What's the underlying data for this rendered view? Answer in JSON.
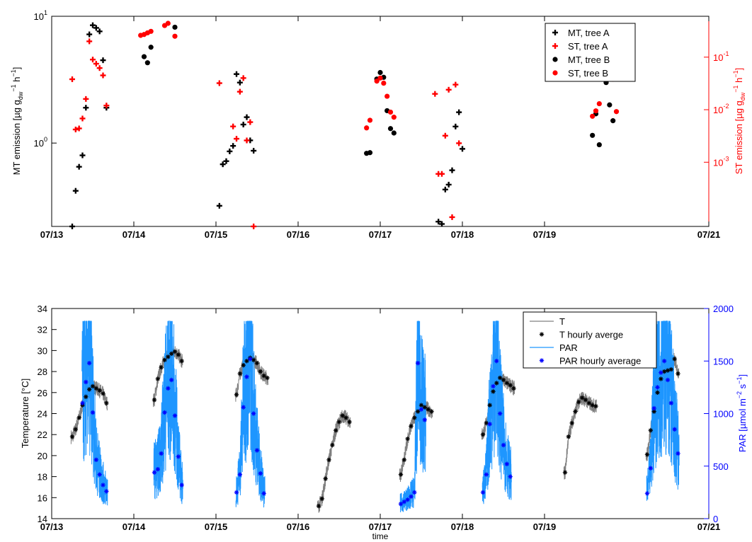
{
  "figure": {
    "xlabel": "time",
    "date_ticks": [
      "07/13",
      "07/14",
      "07/15",
      "07/16",
      "07/17",
      "07/18",
      "07/19",
      "07/21"
    ]
  },
  "colors": {
    "black": "#000000",
    "red": "#ff0000",
    "gray": "#808080",
    "par": "#1e96ff",
    "par_hourly": "#0000ff"
  },
  "chart_data": [
    {
      "type": "scatter",
      "ylabel_left": "MT emission [µg g_dw^-1 h^-1]",
      "ylabel_right": "ST emission [µg g_dw^-1 h^-1]",
      "y_left_scale": "log",
      "y_left_range": [
        0.22,
        10
      ],
      "y_left_ticks": [
        {
          "v": 10,
          "label": "10",
          "exp": "1"
        },
        {
          "v": 1,
          "label": "10",
          "exp": "0"
        }
      ],
      "y_right_scale": "log",
      "y_right_range": [
        6e-05,
        0.6
      ],
      "y_right_ticks": [
        {
          "v": 0.1,
          "label": "10",
          "exp": "-1"
        },
        {
          "v": 0.01,
          "label": "10",
          "exp": "-2"
        },
        {
          "v": 0.001,
          "label": "10",
          "exp": "-3"
        }
      ],
      "x_range": [
        "2012-07-13",
        "2012-07-21"
      ],
      "legend_position": "top-right",
      "series": [
        {
          "name": "MT, tree A",
          "marker": "plus",
          "color": "#000000",
          "axis": "left",
          "x": [
            "07/13 06:00",
            "07/13 07:00",
            "07/13 08:00",
            "07/13 09:00",
            "07/13 10:00",
            "07/13 11:00",
            "07/13 12:00",
            "07/13 13:00",
            "07/13 14:00",
            "07/13 15:00",
            "07/13 16:00",
            "07/13 17:00",
            "07/15 01:00",
            "07/15 02:00",
            "07/15 03:00",
            "07/15 04:00",
            "07/15 05:00",
            "07/15 06:00",
            "07/15 07:00",
            "07/15 08:00",
            "07/15 09:00",
            "07/15 10:00",
            "07/15 11:00",
            "07/15 12:00",
            "07/17 17:00",
            "07/17 18:00",
            "07/17 19:00",
            "07/17 20:00",
            "07/17 21:00",
            "07/17 22:00",
            "07/17 23:00",
            "07/18 00:00"
          ],
          "y": [
            0.22,
            0.42,
            0.65,
            0.8,
            1.9,
            7.2,
            8.5,
            8.1,
            7.6,
            4.5,
            1.9,
            null,
            0.32,
            0.68,
            0.72,
            0.86,
            0.95,
            3.5,
            3.0,
            1.4,
            1.6,
            1.05,
            0.87,
            null,
            0.24,
            0.23,
            0.43,
            0.47,
            0.61,
            1.35,
            1.75,
            0.9
          ]
        },
        {
          "name": "ST, tree A",
          "marker": "plus",
          "color": "#ff0000",
          "axis": "right",
          "x": [
            "07/13 06:00",
            "07/13 07:00",
            "07/13 08:00",
            "07/13 09:00",
            "07/13 10:00",
            "07/13 11:00",
            "07/13 12:00",
            "07/13 13:00",
            "07/13 14:00",
            "07/13 15:00",
            "07/13 16:00",
            "07/15 01:00",
            "07/15 05:00",
            "07/15 06:00",
            "07/15 07:00",
            "07/15 08:00",
            "07/15 09:00",
            "07/15 10:00",
            "07/15 11:00",
            "07/17 16:00",
            "07/17 17:00",
            "07/17 18:00",
            "07/17 19:00",
            "07/17 20:00",
            "07/17 21:00",
            "07/17 22:00",
            "07/17 23:00"
          ],
          "y": [
            0.038,
            0.0042,
            0.0044,
            0.0068,
            0.016,
            0.2,
            0.09,
            0.075,
            0.062,
            0.045,
            0.012,
            0.032,
            0.0048,
            0.0028,
            0.022,
            0.04,
            0.0026,
            0.0058,
            6e-05,
            0.02,
            0.0006,
            0.0006,
            0.0032,
            0.024,
            9e-05,
            0.03,
            0.0023
          ]
        },
        {
          "name": "MT, tree B",
          "marker": "dot",
          "color": "#000000",
          "axis": "left",
          "x": [
            "07/14 03:00",
            "07/14 04:00",
            "07/14 05:00",
            "07/14 12:00",
            "07/16 20:00",
            "07/16 21:00",
            "07/16 23:00",
            "07/17 00:00",
            "07/17 01:00",
            "07/17 02:00",
            "07/17 03:00",
            "07/17 04:00",
            "07/19 14:00",
            "07/19 15:00",
            "07/19 16:00",
            "07/19 17:00",
            "07/19 18:00",
            "07/19 19:00",
            "07/19 20:00"
          ],
          "y": [
            4.8,
            4.3,
            5.7,
            8.2,
            0.83,
            0.84,
            3.2,
            3.6,
            3.3,
            1.8,
            1.3,
            1.2,
            1.15,
            1.7,
            0.97,
            3.5,
            3.0,
            2.0,
            1.5
          ]
        },
        {
          "name": "ST, tree B",
          "marker": "dot",
          "color": "#ff0000",
          "axis": "right",
          "x": [
            "07/14 02:00",
            "07/14 03:00",
            "07/14 04:00",
            "07/14 05:00",
            "07/14 09:00",
            "07/14 10:00",
            "07/14 12:00",
            "07/16 20:00",
            "07/16 21:00",
            "07/16 23:00",
            "07/17 00:00",
            "07/17 01:00",
            "07/17 02:00",
            "07/17 03:00",
            "07/17 04:00",
            "07/19 14:00",
            "07/19 15:00",
            "07/19 16:00",
            "07/19 17:00",
            "07/19 18:00",
            "07/19 19:00",
            "07/19 20:00",
            "07/19 21:00"
          ],
          "y": [
            0.26,
            0.27,
            0.29,
            0.31,
            0.4,
            0.44,
            0.25,
            0.0045,
            0.0063,
            0.035,
            0.04,
            0.032,
            0.018,
            0.009,
            0.0072,
            0.0075,
            0.0095,
            0.013,
            0.16,
            0.042,
            0.055,
            0.038,
            0.0092
          ]
        }
      ]
    },
    {
      "type": "line",
      "ylabel_left": "Temperature [°C]",
      "ylabel_right": "PAR [µmol m^-2 s^-1]",
      "y_left_range": [
        14,
        34
      ],
      "y_left_ticks": [
        14,
        16,
        18,
        20,
        22,
        24,
        26,
        28,
        30,
        32,
        34
      ],
      "y_right_range": [
        0,
        2000
      ],
      "y_right_ticks": [
        0,
        500,
        1000,
        1500,
        2000
      ],
      "x_range": [
        "2012-07-13",
        "2012-07-21"
      ],
      "legend_position": "top-right",
      "series": [
        {
          "name": "T",
          "style": "line",
          "color": "#808080",
          "axis": "left"
        },
        {
          "name": "T hourly averge",
          "style": "marker",
          "marker": "asterisk",
          "color": "#000000",
          "axis": "left",
          "x": [
            "07/13 06:00",
            "07/13 07:00",
            "07/13 08:00",
            "07/13 09:00",
            "07/13 10:00",
            "07/13 11:00",
            "07/13 12:00",
            "07/13 13:00",
            "07/13 14:00",
            "07/13 15:00",
            "07/13 16:00",
            "07/14 06:00",
            "07/14 07:00",
            "07/14 08:00",
            "07/14 09:00",
            "07/14 10:00",
            "07/14 11:00",
            "07/14 12:00",
            "07/14 13:00",
            "07/14 14:00",
            "07/15 06:00",
            "07/15 07:00",
            "07/15 08:00",
            "07/15 09:00",
            "07/15 10:00",
            "07/15 11:00",
            "07/15 12:00",
            "07/15 13:00",
            "07/15 14:00",
            "07/15 15:00",
            "07/16 06:00",
            "07/16 07:00",
            "07/16 08:00",
            "07/16 09:00",
            "07/16 10:00",
            "07/16 11:00",
            "07/16 12:00",
            "07/16 13:00",
            "07/16 14:00",
            "07/16 15:00",
            "07/17 06:00",
            "07/17 07:00",
            "07/17 08:00",
            "07/17 09:00",
            "07/17 10:00",
            "07/17 11:00",
            "07/17 12:00",
            "07/17 13:00",
            "07/17 14:00",
            "07/17 15:00",
            "07/18 06:00",
            "07/18 07:00",
            "07/18 08:00",
            "07/18 09:00",
            "07/18 10:00",
            "07/18 11:00",
            "07/18 12:00",
            "07/18 13:00",
            "07/18 14:00",
            "07/18 15:00",
            "07/19 06:00",
            "07/19 07:00",
            "07/19 08:00",
            "07/19 09:00",
            "07/19 10:00",
            "07/19 11:00",
            "07/19 12:00",
            "07/19 13:00",
            "07/19 14:00",
            "07/19 15:00",
            "07/20 06:00",
            "07/20 07:00",
            "07/20 08:00",
            "07/20 09:00",
            "07/20 10:00",
            "07/20 11:00",
            "07/20 12:00",
            "07/20 13:00",
            "07/20 14:00",
            "07/20 15:00"
          ],
          "y": [
            21.8,
            22.5,
            23.6,
            24.8,
            25.6,
            26.3,
            26.6,
            26.4,
            26.2,
            25.9,
            25.0,
            25.3,
            27.3,
            28.4,
            29.1,
            29.4,
            29.7,
            29.9,
            29.6,
            29.0,
            25.8,
            27.8,
            28.6,
            29.0,
            29.3,
            29.1,
            28.8,
            28.0,
            27.6,
            27.4,
            15.2,
            15.9,
            17.8,
            19.6,
            21.0,
            22.4,
            23.2,
            23.8,
            23.6,
            23.2,
            18.2,
            19.6,
            21.6,
            22.8,
            23.6,
            24.2,
            24.8,
            24.6,
            24.4,
            24.2,
            22.0,
            23.1,
            24.8,
            26.1,
            26.9,
            27.4,
            27.2,
            26.9,
            26.7,
            26.4,
            18.4,
            21.8,
            23.1,
            24.2,
            25.1,
            25.5,
            25.3,
            25.0,
            24.8,
            24.7,
            20.1,
            22.4,
            24.2,
            26.0,
            27.3,
            28.0,
            28.1,
            28.2,
            29.2,
            27.8
          ]
        },
        {
          "name": "PAR",
          "style": "line",
          "color": "#1e96ff",
          "axis": "right"
        },
        {
          "name": "PAR hourly average",
          "style": "marker",
          "marker": "asterisk",
          "color": "#0000ff",
          "axis": "right",
          "x": [
            "07/13 09:00",
            "07/13 10:00",
            "07/13 11:00",
            "07/13 12:00",
            "07/13 13:00",
            "07/13 14:00",
            "07/13 15:00",
            "07/13 16:00",
            "07/14 06:00",
            "07/14 07:00",
            "07/14 08:00",
            "07/14 09:00",
            "07/14 10:00",
            "07/14 11:00",
            "07/14 12:00",
            "07/14 13:00",
            "07/14 14:00",
            "07/15 06:00",
            "07/15 07:00",
            "07/15 08:00",
            "07/15 09:00",
            "07/15 10:00",
            "07/15 11:00",
            "07/15 12:00",
            "07/15 13:00",
            "07/15 14:00",
            "07/17 06:00",
            "07/17 07:00",
            "07/17 08:00",
            "07/17 09:00",
            "07/17 10:00",
            "07/17 11:00",
            "07/17 12:00",
            "07/17 13:00",
            "07/18 06:00",
            "07/18 07:00",
            "07/18 08:00",
            "07/18 09:00",
            "07/18 10:00",
            "07/18 11:00",
            "07/18 12:00",
            "07/18 13:00",
            "07/18 14:00",
            "07/20 06:00",
            "07/20 07:00",
            "07/20 08:00",
            "07/20 09:00",
            "07/20 10:00",
            "07/20 11:00",
            "07/20 12:00",
            "07/20 13:00",
            "07/20 14:00",
            "07/20 15:00"
          ],
          "y": [
            1100,
            1300,
            1480,
            1010,
            560,
            420,
            320,
            260,
            440,
            470,
            620,
            1010,
            1240,
            1320,
            980,
            590,
            320,
            250,
            420,
            1060,
            1350,
            1520,
            1000,
            650,
            430,
            240,
            140,
            160,
            180,
            210,
            250,
            1480,
            1040,
            940,
            250,
            420,
            900,
            1260,
            1500,
            1000,
            700,
            520,
            400,
            240,
            480,
            1050,
            1250,
            1390,
            1500,
            1320,
            1100,
            850,
            620
          ]
        }
      ]
    }
  ]
}
